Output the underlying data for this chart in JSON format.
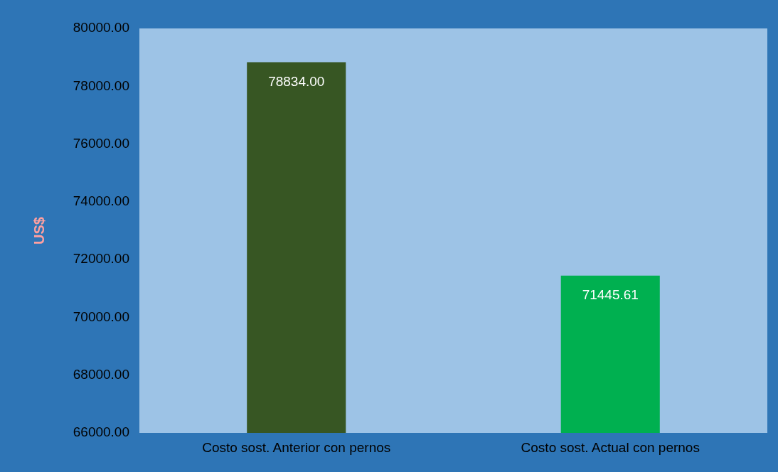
{
  "chart_data": {
    "type": "bar",
    "ylabel": "US$",
    "categories": [
      "Costo sost. Anterior con pernos",
      "Costo sost. Actual con pernos"
    ],
    "values": [
      78834.0,
      71445.61
    ],
    "colors": [
      "#375623",
      "#00b050"
    ],
    "value_labels": [
      "78834.00",
      "71445.61"
    ],
    "ylim": [
      66000,
      80000
    ],
    "yticks": [
      {
        "value": 66000,
        "label": "66000.00"
      },
      {
        "value": 68000,
        "label": "68000.00"
      },
      {
        "value": 70000,
        "label": "70000.00"
      },
      {
        "value": 72000,
        "label": "72000.00"
      },
      {
        "value": 74000,
        "label": "74000.00"
      },
      {
        "value": 76000,
        "label": "76000.00"
      },
      {
        "value": 78000,
        "label": "78000.00"
      },
      {
        "value": 80000,
        "label": "80000.00"
      }
    ],
    "grid": false,
    "legend": false
  }
}
